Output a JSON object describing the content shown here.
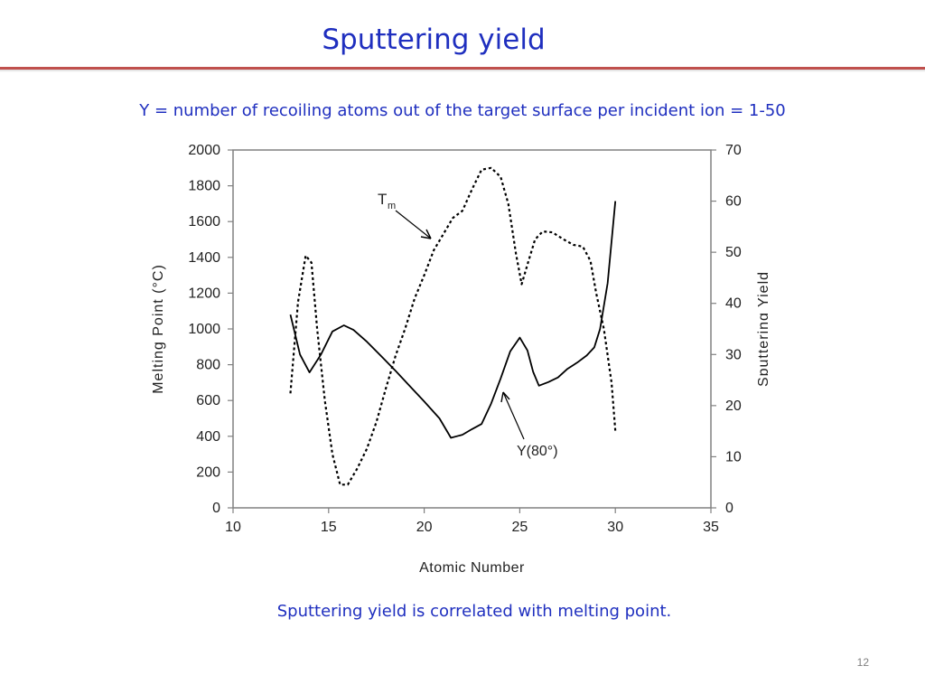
{
  "slide": {
    "title": "Sputtering yield",
    "subtitle": "Y = number of recoiling atoms out of the target surface per incident ion = 1-50",
    "caption": "Sputtering yield is correlated with melting point.",
    "page_number": "12"
  },
  "colors": {
    "title": "#1f2fbf",
    "rule": "#c0504d",
    "axis": "#808080",
    "line": "#000000"
  },
  "chart_data": {
    "type": "line",
    "xlabel": "Atomic Number",
    "ylabel_left": "Melting Point (°C)",
    "ylabel_right": "Sputtering Yield",
    "xlim": [
      10,
      35
    ],
    "ylim_left": [
      0,
      2000
    ],
    "ylim_right": [
      0,
      70
    ],
    "x_ticks": [
      "10",
      "15",
      "20",
      "25",
      "30",
      "35"
    ],
    "y_left_ticks": [
      "0",
      "200",
      "400",
      "600",
      "800",
      "1000",
      "1200",
      "1400",
      "1600",
      "1800",
      "2000"
    ],
    "y_right_ticks": [
      "0",
      "10",
      "20",
      "30",
      "40",
      "50",
      "60",
      "70"
    ],
    "grid": false,
    "series": [
      {
        "name": "Tm",
        "label": "T",
        "label_sub": "m",
        "axis": "left",
        "style": "dashed",
        "points": [
          [
            13,
            640
          ],
          [
            13.4,
            1150
          ],
          [
            13.8,
            1410
          ],
          [
            14.1,
            1370
          ],
          [
            14.4,
            1000
          ],
          [
            14.8,
            600
          ],
          [
            15.2,
            300
          ],
          [
            15.6,
            130
          ],
          [
            16,
            130
          ],
          [
            16.5,
            220
          ],
          [
            17,
            330
          ],
          [
            17.5,
            480
          ],
          [
            18,
            670
          ],
          [
            18.5,
            850
          ],
          [
            19,
            1000
          ],
          [
            19.5,
            1170
          ],
          [
            20,
            1300
          ],
          [
            20.5,
            1440
          ],
          [
            21,
            1530
          ],
          [
            21.5,
            1620
          ],
          [
            22,
            1660
          ],
          [
            22.5,
            1780
          ],
          [
            23,
            1890
          ],
          [
            23.5,
            1900
          ],
          [
            24,
            1850
          ],
          [
            24.4,
            1700
          ],
          [
            24.8,
            1420
          ],
          [
            25.1,
            1250
          ],
          [
            25.4,
            1360
          ],
          [
            25.8,
            1500
          ],
          [
            26.2,
            1545
          ],
          [
            26.7,
            1540
          ],
          [
            27.3,
            1500
          ],
          [
            27.8,
            1470
          ],
          [
            28.3,
            1460
          ],
          [
            28.7,
            1380
          ],
          [
            29,
            1200
          ],
          [
            29.4,
            1000
          ],
          [
            29.8,
            700
          ],
          [
            30,
            430
          ]
        ]
      },
      {
        "name": "Y(80°)",
        "label": "Y(80°)",
        "axis": "right",
        "style": "solid",
        "points": [
          [
            13,
            37.8
          ],
          [
            13.5,
            30
          ],
          [
            14,
            26.5
          ],
          [
            14.6,
            30
          ],
          [
            15.2,
            34.5
          ],
          [
            15.8,
            35.7
          ],
          [
            16.3,
            34.8
          ],
          [
            17,
            32.5
          ],
          [
            17.8,
            29.5
          ],
          [
            18.5,
            26.8
          ],
          [
            19.2,
            24
          ],
          [
            20,
            20.8
          ],
          [
            20.8,
            17.5
          ],
          [
            21.4,
            13.7
          ],
          [
            22,
            14.3
          ],
          [
            22.5,
            15.4
          ],
          [
            23,
            16.4
          ],
          [
            23.5,
            20.4
          ],
          [
            24,
            25.3
          ],
          [
            24.5,
            30.6
          ],
          [
            25,
            33.3
          ],
          [
            25.4,
            30.8
          ],
          [
            25.7,
            26.6
          ],
          [
            26,
            23.9
          ],
          [
            26.5,
            24.6
          ],
          [
            27,
            25.5
          ],
          [
            27.5,
            27.2
          ],
          [
            28,
            28.4
          ],
          [
            28.5,
            29.8
          ],
          [
            28.9,
            31.4
          ],
          [
            29.2,
            35
          ],
          [
            29.6,
            44
          ],
          [
            30,
            60
          ]
        ]
      }
    ]
  }
}
